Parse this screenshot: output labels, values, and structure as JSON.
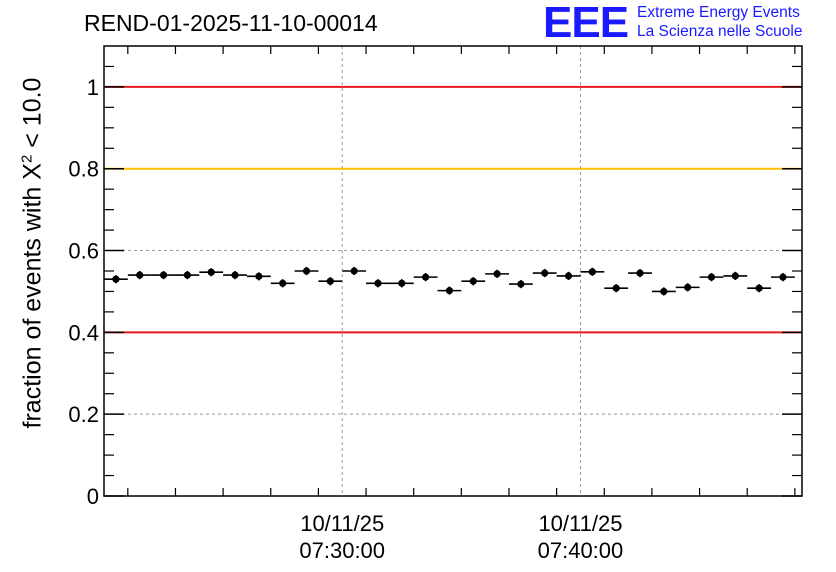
{
  "chart_data": {
    "type": "scatter",
    "title": "REND-01-2025-11-10-00014",
    "ylabel_prefix": "fraction of events with ",
    "ylabel_chi": "X",
    "ylabel_sup": "2",
    "ylabel_suffix": " < 10.0",
    "ylim": [
      0,
      1.1
    ],
    "yticks": [
      0,
      0.2,
      0.4,
      0.6,
      0.8,
      1
    ],
    "ytick_labels": [
      "0",
      "0.2",
      "0.4",
      "0.6",
      "0.8",
      "1"
    ],
    "x_unit": "minutes",
    "xlim": [
      -5,
      24.3
    ],
    "xticks": [
      {
        "x": 5,
        "date": "10/11/25",
        "time": "07:30:00"
      },
      {
        "x": 15,
        "date": "10/11/25",
        "time": "07:40:00"
      }
    ],
    "reference_lines": [
      {
        "y": 1.0,
        "color": "#e31a1c"
      },
      {
        "y": 0.8,
        "color": "#ffc000"
      },
      {
        "y": 0.4,
        "color": "#e31a1c"
      }
    ],
    "x": [
      -4.5,
      -3.5,
      -2.5,
      -1.5,
      -0.5,
      0.5,
      1.5,
      2.5,
      3.5,
      4.5,
      5.5,
      6.5,
      7.5,
      8.5,
      9.5,
      10.5,
      11.5,
      12.5,
      13.5,
      14.5,
      15.5,
      16.5,
      17.5,
      18.5,
      19.5,
      20.5,
      21.5,
      22.5,
      23.5
    ],
    "values": [
      0.53,
      0.54,
      0.54,
      0.54,
      0.547,
      0.54,
      0.537,
      0.52,
      0.55,
      0.525,
      0.55,
      0.52,
      0.52,
      0.535,
      0.502,
      0.525,
      0.543,
      0.518,
      0.545,
      0.538,
      0.548,
      0.508,
      0.545,
      0.5,
      0.51,
      0.535,
      0.538,
      0.508,
      0.535
    ],
    "x_halfwidth": 0.5,
    "y_error": 0.01
  },
  "logo": {
    "letters": "EEE",
    "line1": "Extreme Energy Events",
    "line2": "La Scienza nelle Scuole"
  },
  "colors": {
    "logo": "#1a1aff",
    "grid": "#9a9a9a",
    "points": "#000000"
  }
}
